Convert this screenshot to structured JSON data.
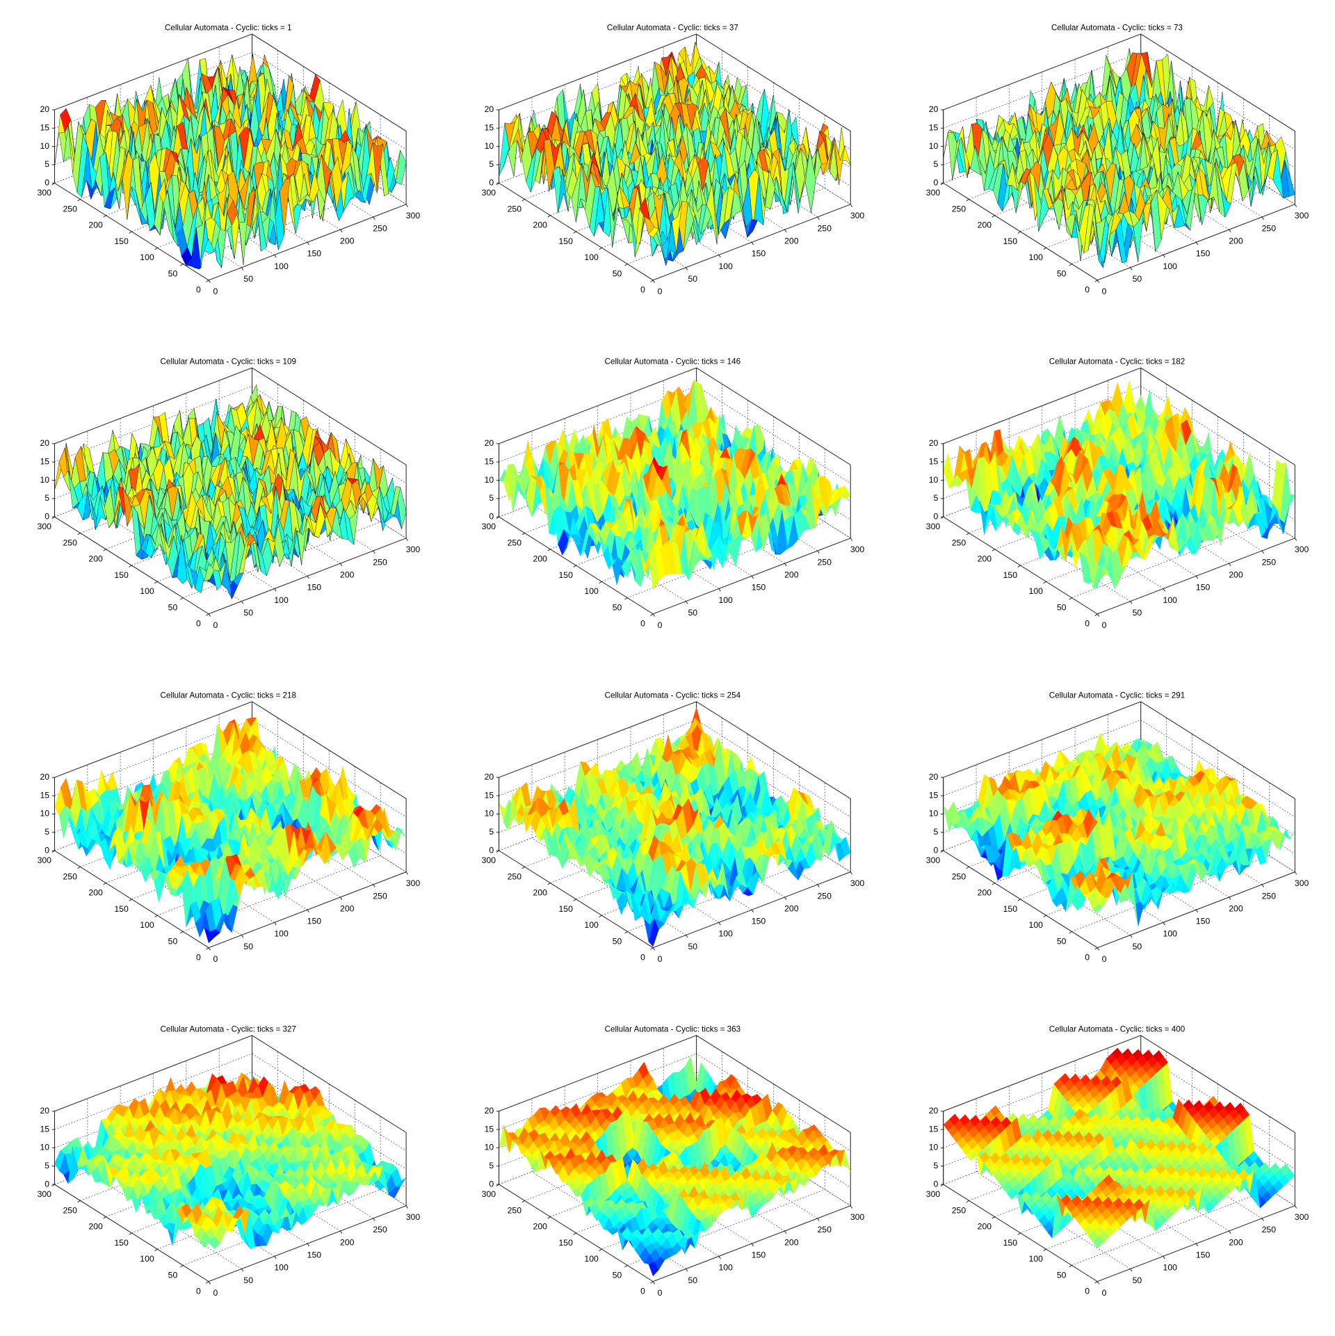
{
  "chart_data": [
    {
      "type": "surface",
      "title": "Cellular Automata - Cyclic: ticks = 1",
      "xlim": [
        0,
        300
      ],
      "ylim": [
        0,
        300
      ],
      "zlim": [
        0,
        20
      ],
      "xticks": [
        0,
        50,
        100,
        150,
        200,
        250,
        300
      ],
      "yticks": [
        0,
        50,
        100,
        150,
        200,
        250,
        300
      ],
      "zticks": [
        0,
        5,
        10,
        15,
        20
      ],
      "grid": true
    },
    {
      "type": "surface",
      "title": "Cellular Automata - Cyclic: ticks = 37",
      "xlim": [
        0,
        300
      ],
      "ylim": [
        0,
        300
      ],
      "zlim": [
        0,
        20
      ],
      "xticks": [
        0,
        50,
        100,
        150,
        200,
        250,
        300
      ],
      "yticks": [
        0,
        50,
        100,
        150,
        200,
        250,
        300
      ],
      "zticks": [
        0,
        5,
        10,
        15,
        20
      ],
      "grid": true
    },
    {
      "type": "surface",
      "title": "Cellular Automata - Cyclic: ticks = 73",
      "xlim": [
        0,
        300
      ],
      "ylim": [
        0,
        300
      ],
      "zlim": [
        0,
        20
      ],
      "xticks": [
        0,
        50,
        100,
        150,
        200,
        250,
        300
      ],
      "yticks": [
        0,
        50,
        100,
        150,
        200,
        250,
        300
      ],
      "zticks": [
        0,
        5,
        10,
        15,
        20
      ],
      "grid": true
    },
    {
      "type": "surface",
      "title": "Cellular Automata - Cyclic: ticks = 109",
      "xlim": [
        0,
        300
      ],
      "ylim": [
        0,
        300
      ],
      "zlim": [
        0,
        20
      ],
      "xticks": [
        0,
        50,
        100,
        150,
        200,
        250,
        300
      ],
      "yticks": [
        0,
        50,
        100,
        150,
        200,
        250,
        300
      ],
      "zticks": [
        0,
        5,
        10,
        15,
        20
      ],
      "grid": true
    },
    {
      "type": "surface",
      "title": "Cellular Automata - Cyclic: ticks = 146",
      "xlim": [
        0,
        300
      ],
      "ylim": [
        0,
        300
      ],
      "zlim": [
        0,
        20
      ],
      "xticks": [
        0,
        50,
        100,
        150,
        200,
        250,
        300
      ],
      "yticks": [
        0,
        50,
        100,
        150,
        200,
        250,
        300
      ],
      "zticks": [
        0,
        5,
        10,
        15,
        20
      ],
      "grid": true
    },
    {
      "type": "surface",
      "title": "Cellular Automata - Cyclic: ticks = 182",
      "xlim": [
        0,
        300
      ],
      "ylim": [
        0,
        300
      ],
      "zlim": [
        0,
        20
      ],
      "xticks": [
        0,
        50,
        100,
        150,
        200,
        250,
        300
      ],
      "yticks": [
        0,
        50,
        100,
        150,
        200,
        250,
        300
      ],
      "zticks": [
        0,
        5,
        10,
        15,
        20
      ],
      "grid": true
    },
    {
      "type": "surface",
      "title": "Cellular Automata - Cyclic: ticks = 218",
      "xlim": [
        0,
        300
      ],
      "ylim": [
        0,
        300
      ],
      "zlim": [
        0,
        20
      ],
      "xticks": [
        0,
        50,
        100,
        150,
        200,
        250,
        300
      ],
      "yticks": [
        0,
        50,
        100,
        150,
        200,
        250,
        300
      ],
      "zticks": [
        0,
        5,
        10,
        15,
        20
      ],
      "grid": true
    },
    {
      "type": "surface",
      "title": "Cellular Automata - Cyclic: ticks = 254",
      "xlim": [
        0,
        300
      ],
      "ylim": [
        0,
        300
      ],
      "zlim": [
        0,
        20
      ],
      "xticks": [
        0,
        50,
        100,
        150,
        200,
        250,
        300
      ],
      "yticks": [
        0,
        50,
        100,
        150,
        200,
        250,
        300
      ],
      "zticks": [
        0,
        5,
        10,
        15,
        20
      ],
      "grid": true
    },
    {
      "type": "surface",
      "title": "Cellular Automata - Cyclic: ticks = 291",
      "xlim": [
        0,
        300
      ],
      "ylim": [
        0,
        300
      ],
      "zlim": [
        0,
        20
      ],
      "xticks": [
        0,
        50,
        100,
        150,
        200,
        250,
        300
      ],
      "yticks": [
        0,
        50,
        100,
        150,
        200,
        250,
        300
      ],
      "zticks": [
        0,
        5,
        10,
        15,
        20
      ],
      "grid": true
    },
    {
      "type": "surface",
      "title": "Cellular Automata - Cyclic: ticks = 327",
      "xlim": [
        0,
        300
      ],
      "ylim": [
        0,
        300
      ],
      "zlim": [
        0,
        20
      ],
      "xticks": [
        0,
        50,
        100,
        150,
        200,
        250,
        300
      ],
      "yticks": [
        0,
        50,
        100,
        150,
        200,
        250,
        300
      ],
      "zticks": [
        0,
        5,
        10,
        15,
        20
      ],
      "grid": true
    },
    {
      "type": "surface",
      "title": "Cellular Automata - Cyclic: ticks = 363",
      "xlim": [
        0,
        300
      ],
      "ylim": [
        0,
        300
      ],
      "zlim": [
        0,
        20
      ],
      "xticks": [
        0,
        50,
        100,
        150,
        200,
        250,
        300
      ],
      "yticks": [
        0,
        50,
        100,
        150,
        200,
        250,
        300
      ],
      "zticks": [
        0,
        5,
        10,
        15,
        20
      ],
      "grid": true
    },
    {
      "type": "surface",
      "title": "Cellular Automata - Cyclic: ticks = 400",
      "xlim": [
        0,
        300
      ],
      "ylim": [
        0,
        300
      ],
      "zlim": [
        0,
        20
      ],
      "xticks": [
        0,
        50,
        100,
        150,
        200,
        250,
        300
      ],
      "yticks": [
        0,
        50,
        100,
        150,
        200,
        250,
        300
      ],
      "zticks": [
        0,
        5,
        10,
        15,
        20
      ],
      "grid": true
    }
  ]
}
